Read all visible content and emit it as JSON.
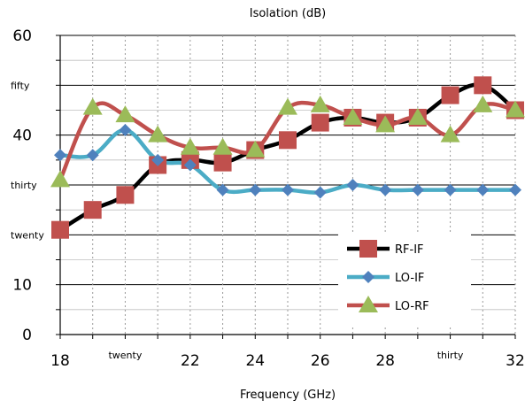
{
  "chart_data": {
    "type": "line",
    "title": "Isolation (dB)",
    "xlabel": "Frequency (GHz)",
    "ylabel": "",
    "xlim": [
      18,
      32
    ],
    "ylim": [
      0,
      60
    ],
    "x": [
      18,
      19,
      20,
      21,
      22,
      23,
      24,
      25,
      26,
      27,
      28,
      29,
      30,
      31,
      32
    ],
    "x_ticks": [
      {
        "value": 18,
        "label": "18"
      },
      {
        "value": 20,
        "label": "twenty"
      },
      {
        "value": 22,
        "label": "22"
      },
      {
        "value": 24,
        "label": "24"
      },
      {
        "value": 26,
        "label": "26"
      },
      {
        "value": 28,
        "label": "28"
      },
      {
        "value": 30,
        "label": "thirty"
      },
      {
        "value": 32,
        "label": "32"
      }
    ],
    "y_ticks": [
      {
        "value": 0,
        "label": "0"
      },
      {
        "value": 10,
        "label": "10"
      },
      {
        "value": 20,
        "label": "twenty"
      },
      {
        "value": 30,
        "label": "thirty"
      },
      {
        "value": 40,
        "label": "40"
      },
      {
        "value": 50,
        "label": "fifty"
      },
      {
        "value": 60,
        "label": "60"
      }
    ],
    "series": [
      {
        "name": "RF-IF",
        "color": "#000000",
        "marker": "square",
        "marker_color": "#c0504d",
        "values": [
          21,
          25,
          28,
          34,
          35,
          34.5,
          37,
          39,
          42.5,
          43.5,
          42.5,
          43.5,
          48,
          50,
          45
        ]
      },
      {
        "name": "LO-IF",
        "color": "#4bacc6",
        "marker": "diamond",
        "marker_color": "#4f81bd",
        "values": [
          36,
          36,
          41,
          35,
          34,
          29,
          29,
          29,
          28.5,
          30,
          29,
          29,
          29,
          29,
          29
        ]
      },
      {
        "name": "LO-RF",
        "color": "#c0504d",
        "marker": "triangle",
        "marker_color": "#9bbb59",
        "values": [
          31,
          45.5,
          44,
          40,
          37.5,
          37.5,
          37,
          45.5,
          46,
          43.5,
          42,
          43.5,
          40,
          46,
          45
        ]
      }
    ],
    "grid": true,
    "legend_position": "bottom-right"
  }
}
